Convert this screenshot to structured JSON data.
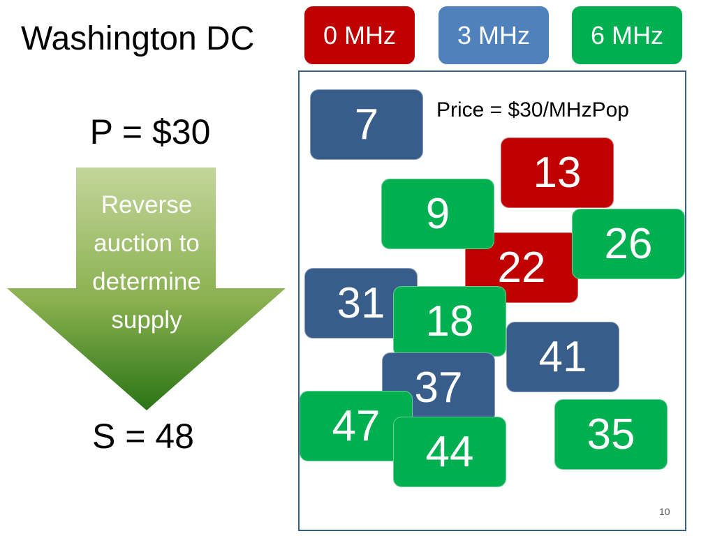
{
  "header": {
    "title": "Washington DC"
  },
  "legend": [
    {
      "label": "0 MHz",
      "color": "#c00000"
    },
    {
      "label": "3 MHz",
      "color": "#4f81bd"
    },
    {
      "label": "6 MHz",
      "color": "#00b050"
    }
  ],
  "price": "P = $30",
  "arrow": {
    "lines": [
      "Reverse",
      "auction to",
      "determine",
      "supply"
    ]
  },
  "supply": "S = 48",
  "panel": {
    "note": "Price = $30/MHzPop",
    "tiles": [
      {
        "label": "7",
        "color": "#385d8a"
      },
      {
        "label": "13",
        "color": "#c00000"
      },
      {
        "label": "22",
        "color": "#c00000"
      },
      {
        "label": "9",
        "color": "#00b050"
      },
      {
        "label": "26",
        "color": "#00b050"
      },
      {
        "label": "31",
        "color": "#385d8a"
      },
      {
        "label": "18",
        "color": "#00b050"
      },
      {
        "label": "41",
        "color": "#385d8a"
      },
      {
        "label": "37",
        "color": "#385d8a"
      },
      {
        "label": "47",
        "color": "#00b050"
      },
      {
        "label": "44",
        "color": "#00b050"
      },
      {
        "label": "35",
        "color": "#00b050"
      }
    ]
  },
  "page_number": "10"
}
